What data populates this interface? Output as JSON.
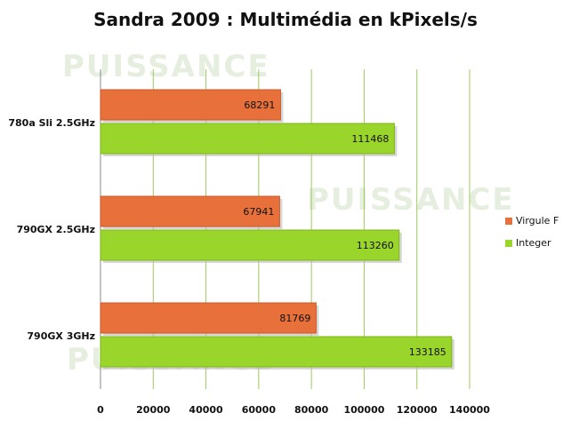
{
  "chart_data": {
    "type": "bar",
    "orientation": "horizontal",
    "title": "Sandra 2009 : Multimédia en kPixels/s",
    "categories": [
      "780a Sli 2.5GHz",
      "790GX 2.5GHz",
      "790GX 3GHz"
    ],
    "series": [
      {
        "name": "Virgule F",
        "color": "#e8703a",
        "values": [
          68291,
          67941,
          81769
        ]
      },
      {
        "name": "Integer",
        "color": "#99d52a",
        "values": [
          111468,
          113260,
          133185
        ]
      }
    ],
    "xlim": [
      0,
      140000
    ],
    "xticks": [
      "0",
      "20000",
      "40000",
      "60000",
      "80000",
      "100000",
      "120000",
      "140000"
    ],
    "grid": true,
    "legend": "right",
    "watermark": "PUISSANCE PC"
  }
}
